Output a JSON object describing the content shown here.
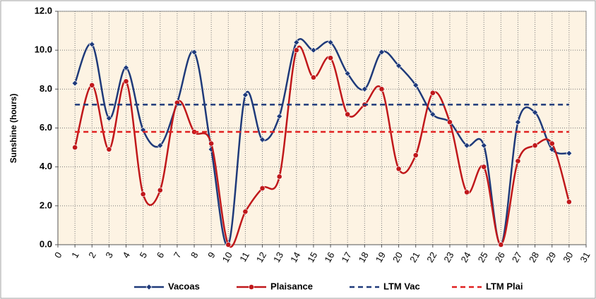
{
  "chart_data": {
    "type": "line",
    "y_label": "Sunshine (hours)",
    "x": [
      1,
      2,
      3,
      4,
      5,
      6,
      7,
      8,
      9,
      10,
      11,
      12,
      13,
      14,
      15,
      16,
      17,
      18,
      19,
      20,
      21,
      22,
      23,
      24,
      25,
      26,
      27,
      28,
      29,
      30
    ],
    "series": [
      {
        "name": "Vacoas",
        "color": "#1f3a7a",
        "marker": "diamond",
        "dashed": false,
        "values": [
          8.3,
          10.3,
          6.5,
          9.1,
          5.9,
          5.1,
          7.3,
          9.9,
          4.9,
          0,
          7.7,
          5.4,
          6.6,
          10.4,
          10.0,
          10.4,
          8.8,
          8.0,
          9.9,
          9.2,
          8.2,
          6.7,
          6.3,
          5.1,
          5.1,
          0,
          6.3,
          6.8,
          4.9,
          4.7
        ]
      },
      {
        "name": "Plaisance",
        "color": "#c0181b",
        "marker": "circle",
        "dashed": false,
        "values": [
          5.0,
          8.2,
          4.9,
          8.4,
          2.6,
          2.8,
          7.3,
          5.8,
          5.2,
          0,
          1.7,
          2.9,
          3.5,
          10.0,
          8.6,
          9.6,
          6.7,
          7.2,
          8.0,
          3.9,
          4.6,
          7.8,
          6.3,
          2.7,
          4.0,
          0,
          4.3,
          5.1,
          5.2,
          2.2
        ]
      },
      {
        "name": "LTM Vac",
        "color": "#1f3a7a",
        "marker": null,
        "dashed": true,
        "values": [
          7.2,
          7.2,
          7.2,
          7.2,
          7.2,
          7.2,
          7.2,
          7.2,
          7.2,
          7.2,
          7.2,
          7.2,
          7.2,
          7.2,
          7.2,
          7.2,
          7.2,
          7.2,
          7.2,
          7.2,
          7.2,
          7.2,
          7.2,
          7.2,
          7.2,
          7.2,
          7.2,
          7.2,
          7.2,
          7.2
        ]
      },
      {
        "name": "LTM Plai",
        "color": "#e02020",
        "marker": null,
        "dashed": true,
        "values": [
          5.8,
          5.8,
          5.8,
          5.8,
          5.8,
          5.8,
          5.8,
          5.8,
          5.8,
          5.8,
          5.8,
          5.8,
          5.8,
          5.8,
          5.8,
          5.8,
          5.8,
          5.8,
          5.8,
          5.8,
          5.8,
          5.8,
          5.8,
          5.8,
          5.8,
          5.8,
          5.8,
          5.8,
          5.8,
          5.8
        ]
      }
    ],
    "xlim": [
      0,
      31
    ],
    "xticks": [
      0,
      1,
      2,
      3,
      4,
      5,
      6,
      7,
      8,
      9,
      10,
      11,
      12,
      13,
      14,
      15,
      16,
      17,
      18,
      19,
      20,
      21,
      22,
      23,
      24,
      25,
      26,
      27,
      28,
      29,
      30,
      31
    ],
    "ylim": [
      0,
      12
    ],
    "yticks": [
      {
        "value": 0,
        "label": "0.0"
      },
      {
        "value": 2,
        "label": "2.0"
      },
      {
        "value": 4,
        "label": "4.0"
      },
      {
        "value": 6,
        "label": "6.0"
      },
      {
        "value": 8,
        "label": "8.0"
      },
      {
        "value": 10,
        "label": "10.0"
      },
      {
        "value": 12,
        "label": "12.0"
      }
    ],
    "grid": true,
    "legend": "bottom"
  }
}
